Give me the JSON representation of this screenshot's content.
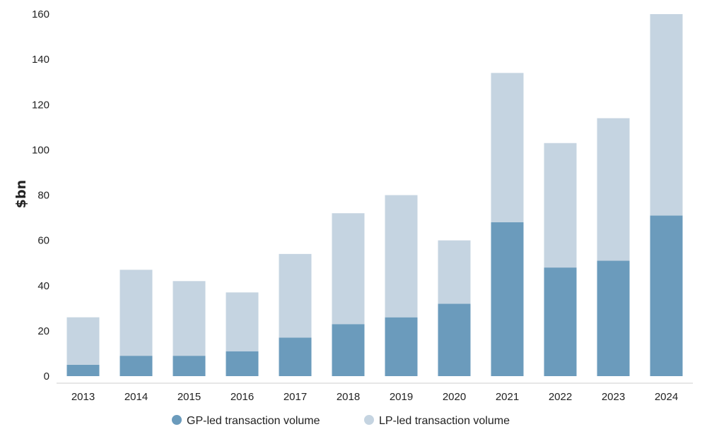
{
  "chart_data": {
    "type": "bar",
    "stacked": true,
    "title": "",
    "xlabel": "",
    "ylabel": "$bn",
    "ylim": [
      0,
      160
    ],
    "yticks": [
      0,
      20,
      40,
      60,
      80,
      100,
      120,
      140,
      160
    ],
    "grid": false,
    "legend_position": "bottom-center",
    "categories": [
      "2013",
      "2014",
      "2015",
      "2016",
      "2017",
      "2018",
      "2019",
      "2020",
      "2021",
      "2022",
      "2023",
      "2024"
    ],
    "series": [
      {
        "name": "GP-led transaction volume",
        "color": "#6b9bbc",
        "values": [
          5,
          9,
          9,
          11,
          17,
          23,
          26,
          32,
          68,
          48,
          51,
          71
        ]
      },
      {
        "name": "LP-led transaction volume",
        "color": "#c5d4e1",
        "values": [
          21,
          38,
          33,
          26,
          37,
          49,
          54,
          28,
          66,
          55,
          63,
          89
        ]
      }
    ]
  }
}
